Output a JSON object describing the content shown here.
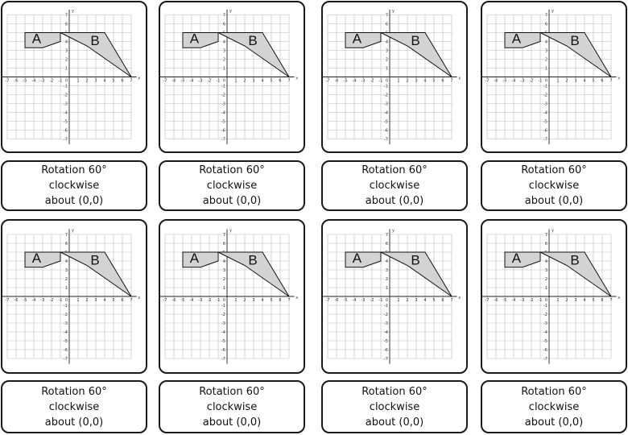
{
  "cards": [
    {
      "shape_a": "A",
      "shape_b": "B",
      "caption": {
        "line1": "Rotation 60°",
        "line2": "clockwise",
        "line3": "about (0,0)"
      }
    },
    {
      "shape_a": "A",
      "shape_b": "B",
      "caption": {
        "line1": "Rotation 60°",
        "line2": "clockwise",
        "line3": "about (0,0)"
      }
    },
    {
      "shape_a": "A",
      "shape_b": "B",
      "caption": {
        "line1": "Rotation 60°",
        "line2": "clockwise",
        "line3": "about (0,0)"
      }
    },
    {
      "shape_a": "A",
      "shape_b": "B",
      "caption": {
        "line1": "Rotation 60°",
        "line2": "clockwise",
        "line3": "about (0,0)"
      }
    },
    {
      "shape_a": "A",
      "shape_b": "B",
      "caption": {
        "line1": "Rotation 60°",
        "line2": "clockwise",
        "line3": "about (0,0)"
      }
    },
    {
      "shape_a": "A",
      "shape_b": "B",
      "caption": {
        "line1": "Rotation 60°",
        "line2": "clockwise",
        "line3": "about (0,0)"
      }
    },
    {
      "shape_a": "A",
      "shape_b": "B",
      "caption": {
        "line1": "Rotation 60°",
        "line2": "clockwise",
        "line3": "about (0,0)"
      }
    },
    {
      "shape_a": "A",
      "shape_b": "B",
      "caption": {
        "line1": "Rotation 60°",
        "line2": "clockwise",
        "line3": "about (0,0)"
      }
    }
  ],
  "axes": {
    "x_label": "x",
    "y_label": "y",
    "origin_label": "0",
    "x_ticks": [
      -7,
      -6,
      -5,
      -4,
      -3,
      -2,
      -1,
      1,
      2,
      3,
      4,
      5,
      6,
      7
    ],
    "y_ticks": [
      7,
      6,
      5,
      4,
      3,
      2,
      1,
      -1,
      -2,
      -3,
      -4,
      -5,
      -6,
      -7
    ]
  },
  "shapes": {
    "A": [
      [
        -5,
        5
      ],
      [
        -1,
        5
      ],
      [
        -1,
        4
      ],
      [
        -3,
        3.3
      ],
      [
        -5,
        3.3
      ]
    ],
    "B": [
      [
        -1,
        5
      ],
      [
        4,
        5
      ],
      [
        7,
        0
      ],
      [
        2,
        3.5
      ]
    ]
  },
  "colors": {
    "shape_fill": "#d3d3d3",
    "grid": "#b9b9b9",
    "axis": "#222222",
    "border": "#1a1a1a"
  }
}
